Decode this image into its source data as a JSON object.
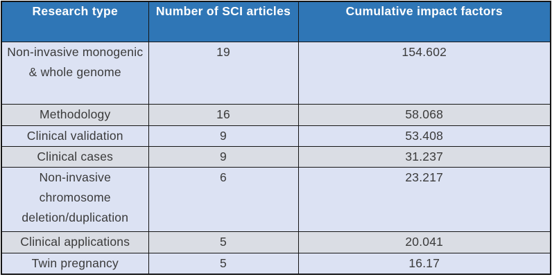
{
  "table": {
    "columns": [
      {
        "label": "Research type"
      },
      {
        "label": "Number of SCI articles"
      },
      {
        "label": "Cumulative impact factors"
      }
    ],
    "rows": [
      {
        "research_type": "Non-invasive monogenic & whole genome",
        "sci_articles": "19",
        "impact_factors": "154.602"
      },
      {
        "research_type": "Methodology",
        "sci_articles": "16",
        "impact_factors": "58.068"
      },
      {
        "research_type": "Clinical validation",
        "sci_articles": "9",
        "impact_factors": "53.408"
      },
      {
        "research_type": "Clinical cases",
        "sci_articles": "9",
        "impact_factors": "31.237"
      },
      {
        "research_type": "Non-invasive chromosome deletion/duplication",
        "sci_articles": "6",
        "impact_factors": "23.217"
      },
      {
        "research_type": "Clinical applications",
        "sci_articles": "5",
        "impact_factors": "20.041"
      },
      {
        "research_type": "Twin pregnancy",
        "sci_articles": "5",
        "impact_factors": "16.17"
      }
    ],
    "colors": {
      "header_background": "#2f76b6",
      "header_text": "#ffffff",
      "row_lavender": "#dce2f3",
      "row_gray": "#dadde4",
      "border": "#141414",
      "body_text": "#3a3a3a"
    }
  }
}
